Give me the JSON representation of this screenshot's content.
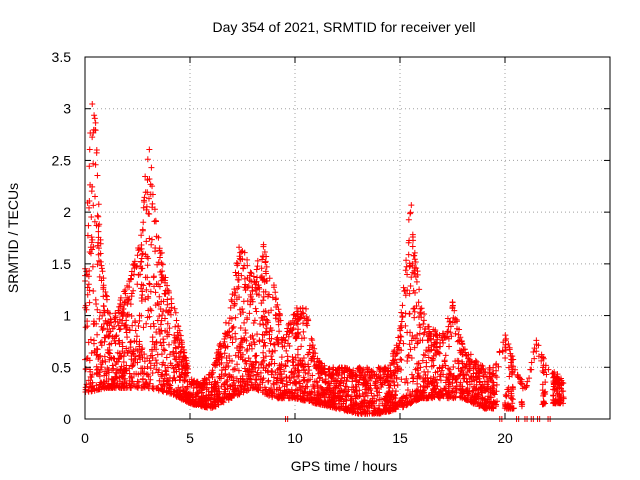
{
  "chart_data": {
    "type": "scatter",
    "title": "Day 354 of 2021, SRMTID for receiver yell",
    "xlabel": "GPS time / hours",
    "ylabel": "SRMTID / TECUs",
    "xlim": [
      0,
      25
    ],
    "ylim": [
      0,
      3.5
    ],
    "xticks": [
      0,
      5,
      10,
      15,
      20
    ],
    "xtick_labels": [
      "0",
      "5",
      "10",
      "15",
      "20"
    ],
    "yticks": [
      0,
      0.5,
      1,
      1.5,
      2,
      2.5,
      3,
      3.5
    ],
    "ytick_labels": [
      "0",
      "0.5",
      "1",
      "1.5",
      "2",
      "2.5",
      "3",
      "3.5"
    ],
    "grid": true,
    "marker": "plus",
    "color": "#ff0000",
    "envelope": {
      "description": "approximate upper envelope of the point cloud (hours, TECU)",
      "x": [
        0.0,
        0.3,
        0.5,
        0.8,
        1.2,
        2.0,
        2.7,
        3.0,
        3.4,
        4.0,
        4.5,
        5.0,
        5.5,
        6.0,
        6.5,
        7.0,
        7.4,
        8.0,
        8.5,
        9.0,
        9.5,
        10.0,
        10.5,
        11.0,
        11.5,
        12.0,
        13.0,
        14.0,
        14.5,
        15.0,
        15.5,
        16.0,
        16.5,
        17.0,
        17.5,
        18.0,
        18.5,
        19.0,
        19.5,
        20.0,
        20.5,
        21.0,
        21.5,
        22.0,
        22.5,
        22.8
      ],
      "y": [
        1.5,
        3.2,
        2.9,
        1.5,
        1.0,
        1.3,
        1.8,
        2.8,
        1.9,
        1.3,
        0.9,
        0.4,
        0.35,
        0.45,
        0.8,
        1.2,
        1.75,
        1.4,
        1.7,
        1.3,
        0.8,
        1.1,
        1.1,
        0.6,
        0.5,
        0.5,
        0.5,
        0.5,
        0.5,
        0.9,
        2.15,
        1.1,
        0.9,
        0.8,
        1.15,
        0.7,
        0.6,
        0.5,
        0.5,
        0.85,
        0.5,
        0.3,
        0.8,
        0.5,
        0.45,
        0.35
      ]
    },
    "baseline": {
      "description": "approximate lower envelope of the point cloud (hours, TECU)",
      "x": [
        0.0,
        1.0,
        2.0,
        3.0,
        4.0,
        5.0,
        6.0,
        7.0,
        8.0,
        9.0,
        10.0,
        11.0,
        12.0,
        13.0,
        14.0,
        15.0,
        16.0,
        17.0,
        18.0,
        19.0,
        20.0,
        21.0,
        22.0,
        22.8
      ],
      "y": [
        0.25,
        0.3,
        0.3,
        0.3,
        0.25,
        0.15,
        0.1,
        0.2,
        0.3,
        0.2,
        0.2,
        0.15,
        0.1,
        0.05,
        0.05,
        0.1,
        0.2,
        0.2,
        0.2,
        0.1,
        0.1,
        0.1,
        0.15,
        0.15
      ]
    },
    "data_gaps_near_zero": [
      9.6,
      19.8,
      20.6,
      21.0,
      21.3,
      21.6,
      22.1
    ]
  }
}
